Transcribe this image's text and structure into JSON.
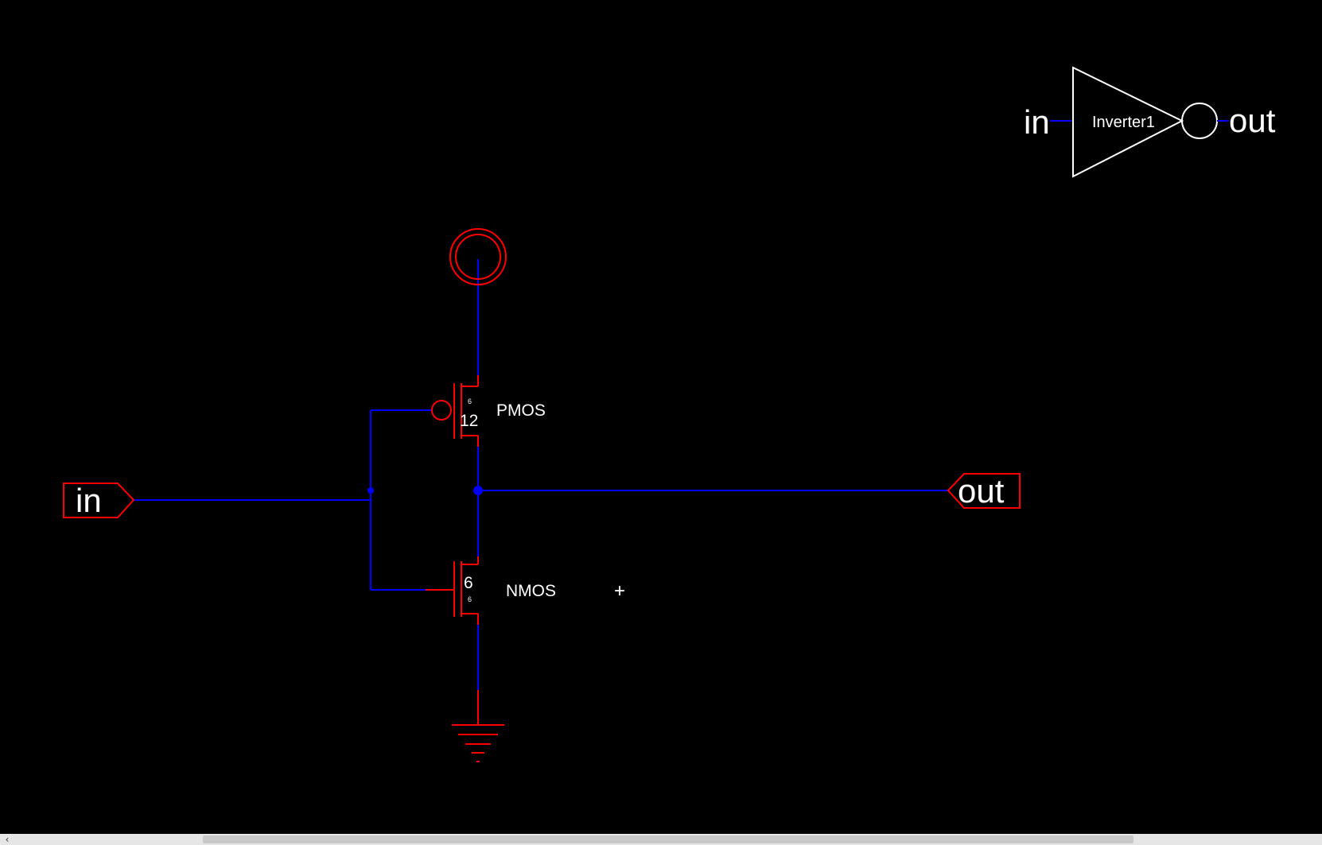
{
  "colors": {
    "background": "#000000",
    "wire": "#0000ff",
    "component": "#ff0000",
    "symbol": "#ffffff",
    "text": "#ffffff"
  },
  "schematic": {
    "input_port_label": "in",
    "output_port_label": "out",
    "pmos": {
      "label": "PMOS",
      "width": "12",
      "length": "6"
    },
    "nmos": {
      "label": "NMOS",
      "width": "6",
      "length": "6"
    }
  },
  "symbol": {
    "name": "Inverter1",
    "input_label": "in",
    "output_label": "out"
  },
  "cursor": {
    "glyph": "+"
  },
  "scrollbar": {
    "left_arrow_icon": "chevron-left-icon",
    "left_arrow_glyph": "‹"
  }
}
